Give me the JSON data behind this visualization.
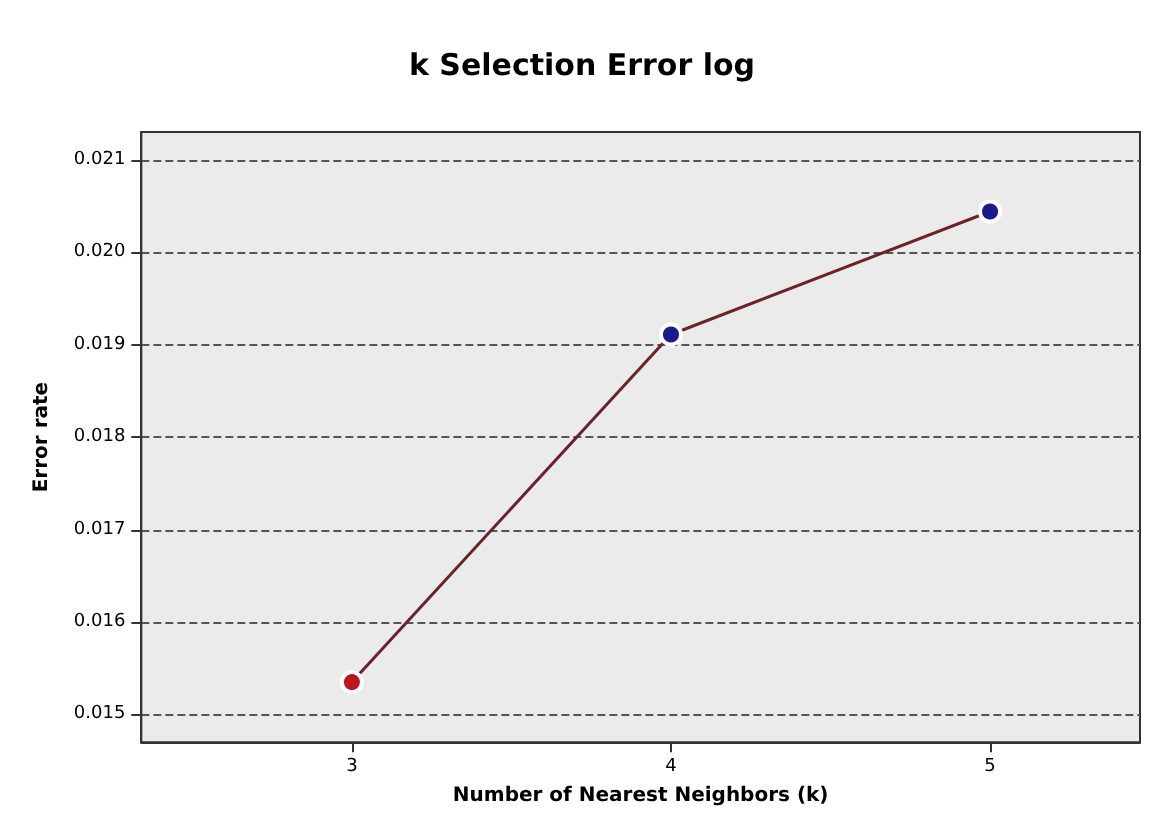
{
  "chart_data": {
    "type": "line",
    "title": "k Selection Error log",
    "xlabel": "Number of Nearest Neighbors (k)",
    "ylabel": "Error rate",
    "x": [
      3,
      4,
      5
    ],
    "series": [
      {
        "color": "#6b2228",
        "colors": [
          "#c0141c",
          "#1a1a8c",
          "#1a1a8c"
        ],
        "values": [
          0.01535,
          0.01911,
          0.02044
        ]
      }
    ],
    "xlim": [
      2.34,
      5.47
    ],
    "xticks": [
      3,
      4,
      5
    ],
    "ylim": [
      0.0147,
      0.0213
    ],
    "yticks": [
      0.015,
      0.016,
      0.017,
      0.018,
      0.019,
      {
        "value": 0.02,
        "label": "0.020"
      },
      0.021
    ],
    "grid": "y",
    "marker": "circle",
    "line_style": "solid"
  }
}
